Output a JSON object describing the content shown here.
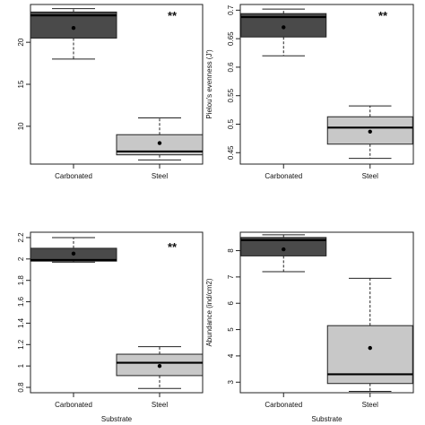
{
  "chart_data": [
    {
      "type": "box",
      "title": "",
      "xlabel": "",
      "ylabel": "",
      "ylim": [
        5.5,
        24.5
      ],
      "yticks": [
        10,
        15,
        20
      ],
      "categories": [
        "Carbonated",
        "Steel"
      ],
      "boxes": [
        {
          "category": "Carbonated",
          "whisker_low": 18,
          "q1": 20.5,
          "median": 23.2,
          "q3": 23.6,
          "whisker_high": 24.0,
          "mean": 21.7,
          "fill": "#4a4a4a"
        },
        {
          "category": "Steel",
          "whisker_low": 6.0,
          "q1": 6.6,
          "median": 7.0,
          "q3": 9.0,
          "whisker_high": 11.0,
          "mean": 8.0,
          "fill": "#c8c8c8"
        }
      ],
      "annotation": "**"
    },
    {
      "type": "box",
      "title": "",
      "xlabel": "",
      "ylabel": "Pielou's evenness (J')",
      "ylim": [
        0.43,
        0.71
      ],
      "yticks": [
        0.45,
        0.5,
        0.55,
        0.6,
        0.65,
        0.7
      ],
      "categories": [
        "Carbonated",
        "Steel"
      ],
      "boxes": [
        {
          "category": "Carbonated",
          "whisker_low": 0.62,
          "q1": 0.653,
          "median": 0.688,
          "q3": 0.694,
          "whisker_high": 0.702,
          "mean": 0.67,
          "fill": "#4a4a4a"
        },
        {
          "category": "Steel",
          "whisker_low": 0.44,
          "q1": 0.465,
          "median": 0.494,
          "q3": 0.513,
          "whisker_high": 0.532,
          "mean": 0.487,
          "fill": "#c8c8c8"
        }
      ],
      "annotation": "**"
    },
    {
      "type": "box",
      "title": "",
      "xlabel": "Substrate",
      "ylabel": "",
      "ylim": [
        0.75,
        2.25
      ],
      "yticks": [
        0.8,
        1.0,
        1.2,
        1.4,
        1.6,
        1.8,
        2.0,
        2.2
      ],
      "categories": [
        "Carbonated",
        "Steel"
      ],
      "boxes": [
        {
          "category": "Carbonated",
          "whisker_low": 1.97,
          "q1": 1.98,
          "median": 1.99,
          "q3": 2.1,
          "whisker_high": 2.2,
          "mean": 2.05,
          "fill": "#4a4a4a"
        },
        {
          "category": "Steel",
          "whisker_low": 0.79,
          "q1": 0.91,
          "median": 1.03,
          "q3": 1.11,
          "whisker_high": 1.18,
          "mean": 1.0,
          "fill": "#c8c8c8"
        }
      ],
      "annotation": "**"
    },
    {
      "type": "box",
      "title": "",
      "xlabel": "Substrate",
      "ylabel": "Abundance (ind/cm2)",
      "ylim": [
        2.6,
        8.7
      ],
      "yticks": [
        3,
        4,
        5,
        6,
        7,
        8
      ],
      "categories": [
        "Carbonated",
        "Steel"
      ],
      "boxes": [
        {
          "category": "Carbonated",
          "whisker_low": 7.2,
          "q1": 7.8,
          "median": 8.4,
          "q3": 8.5,
          "whisker_high": 8.6,
          "mean": 8.05,
          "fill": "#4a4a4a"
        },
        {
          "category": "Steel",
          "whisker_low": 2.65,
          "q1": 2.95,
          "median": 3.3,
          "q3": 5.15,
          "whisker_high": 6.95,
          "mean": 4.3,
          "fill": "#c8c8c8"
        }
      ],
      "annotation": ""
    }
  ]
}
